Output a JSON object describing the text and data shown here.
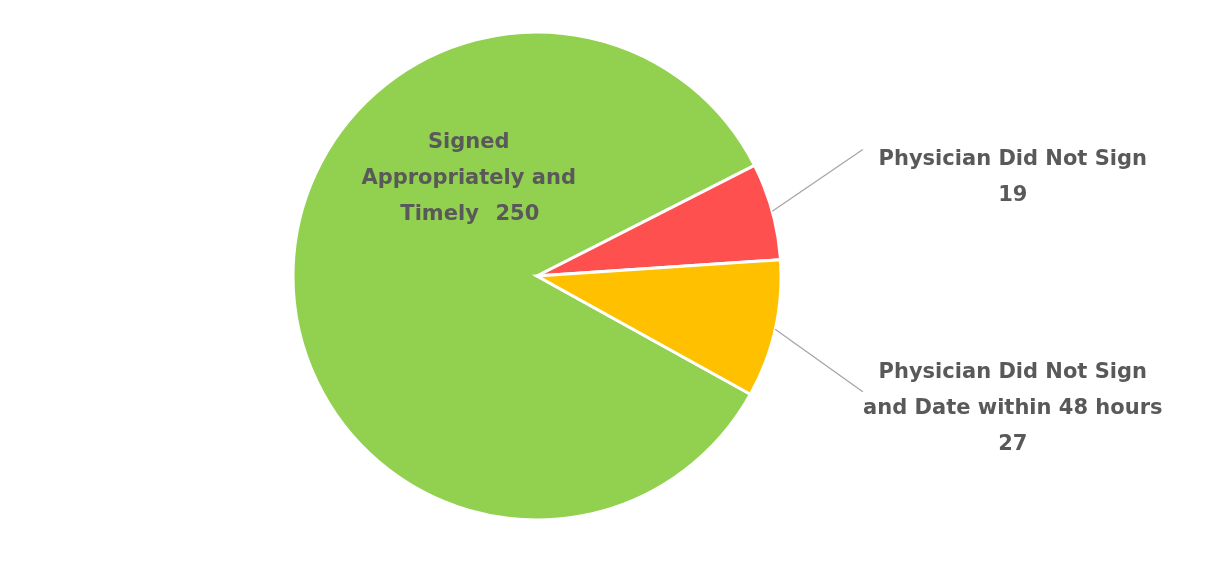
{
  "chart_data": {
    "type": "pie",
    "categories": [
      "Signed Appropriately and Timely",
      "Physician Did Not Sign",
      "Physician Did Not Sign and Date within 48 hours"
    ],
    "values": [
      250,
      19,
      27
    ],
    "colors": [
      "#92d050",
      "#ff5050",
      "#ffc000"
    ],
    "data_labels": true
  }
}
